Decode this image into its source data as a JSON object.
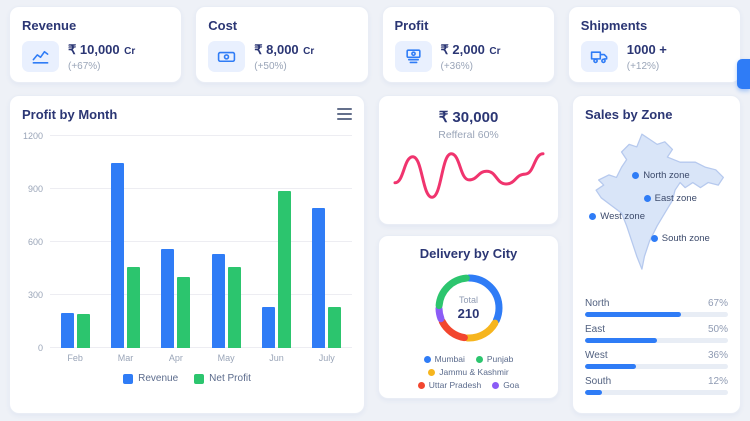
{
  "kpis": [
    {
      "title": "Revenue",
      "icon": "line-chart-icon",
      "value": "₹ 10,000",
      "unit": "Cr",
      "change": "(+67%)"
    },
    {
      "title": "Cost",
      "icon": "banknote-icon",
      "value": "₹ 8,000",
      "unit": "Cr",
      "change": "(+50%)"
    },
    {
      "title": "Profit",
      "icon": "money-stack-icon",
      "value": "₹ 2,000",
      "unit": "Cr",
      "change": "(+36%)"
    },
    {
      "title": "Shipments",
      "icon": "truck-icon",
      "value": "1000 +",
      "unit": "",
      "change": "(+12%)"
    }
  ],
  "referral_card": {
    "value": "₹ 30,000",
    "subtitle": "Refferal 60%"
  },
  "chart_data": [
    {
      "id": "profit_by_month",
      "type": "bar",
      "title": "Profit by Month",
      "categories": [
        "Feb",
        "Mar",
        "Apr",
        "May",
        "Jun",
        "July"
      ],
      "series": [
        {
          "name": "Revenue",
          "color": "#2f7cf6",
          "values": [
            200,
            1050,
            560,
            530,
            230,
            790
          ]
        },
        {
          "name": "Net Profit",
          "color": "#2cc56e",
          "values": [
            190,
            460,
            400,
            460,
            890,
            230
          ]
        }
      ],
      "ylim": [
        0,
        1200
      ],
      "yticks": [
        0,
        300,
        600,
        900,
        1200
      ],
      "grid": true,
      "legend_position": "bottom"
    },
    {
      "id": "referral_trend",
      "type": "line",
      "color": "#f0346e",
      "x": [
        0,
        12,
        25,
        38,
        50,
        62,
        75,
        88,
        100
      ],
      "y": [
        60,
        15,
        85,
        10,
        55,
        40,
        62,
        45,
        10
      ]
    },
    {
      "id": "delivery_by_city",
      "type": "pie",
      "title": "Delivery by City",
      "center_label": "Total",
      "total": 210,
      "labels": [
        "Mumbai",
        "Punjab",
        "Jammu & Kashmir",
        "Uttar Pradesh",
        "Goa"
      ],
      "values": [
        70,
        50,
        40,
        35,
        15
      ],
      "colors": [
        "#2f7cf6",
        "#2cc56e",
        "#f6b51e",
        "#f2462f",
        "#8b5cf6"
      ],
      "draw_order": [
        0,
        2,
        3,
        4,
        1
      ]
    },
    {
      "id": "sales_by_zone",
      "type": "bar",
      "title": "Sales by Zone",
      "categories": [
        "North",
        "East",
        "West",
        "South"
      ],
      "values": [
        67,
        50,
        36,
        12
      ],
      "value_labels": [
        "67%",
        "50%",
        "36%",
        "12%"
      ],
      "xlim": [
        0,
        100
      ],
      "color": "#2f7cf6"
    }
  ],
  "zone_markers": [
    {
      "label": "North zone"
    },
    {
      "label": "East zone"
    },
    {
      "label": "West zone"
    },
    {
      "label": "South zone"
    }
  ]
}
